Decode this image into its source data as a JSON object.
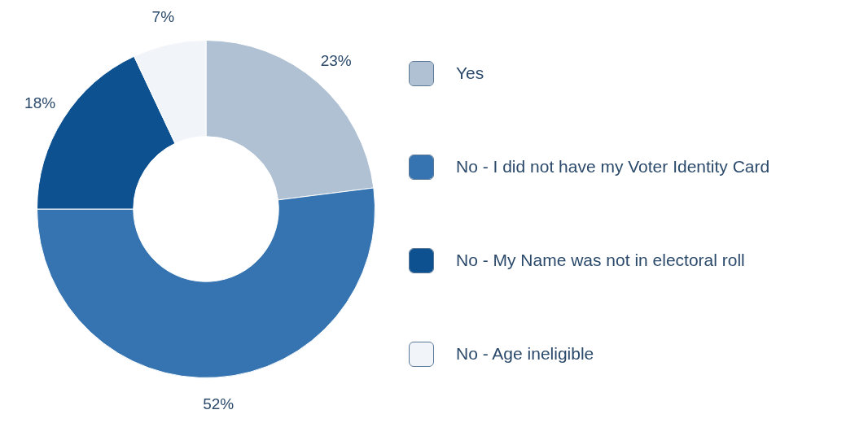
{
  "chart_data": {
    "type": "donut",
    "categories": [
      "Yes",
      "No - I did not have my Voter Identity Card",
      "No - My Name was not in electoral roll",
      "No - Age ineligible"
    ],
    "values": [
      23,
      52,
      18,
      7
    ],
    "value_labels": [
      "23%",
      "52%",
      "18%",
      "7%"
    ],
    "colors": [
      "#b0c1d3",
      "#3574b0",
      "#0e5190",
      "#f1f5fa"
    ],
    "legend": "right"
  }
}
